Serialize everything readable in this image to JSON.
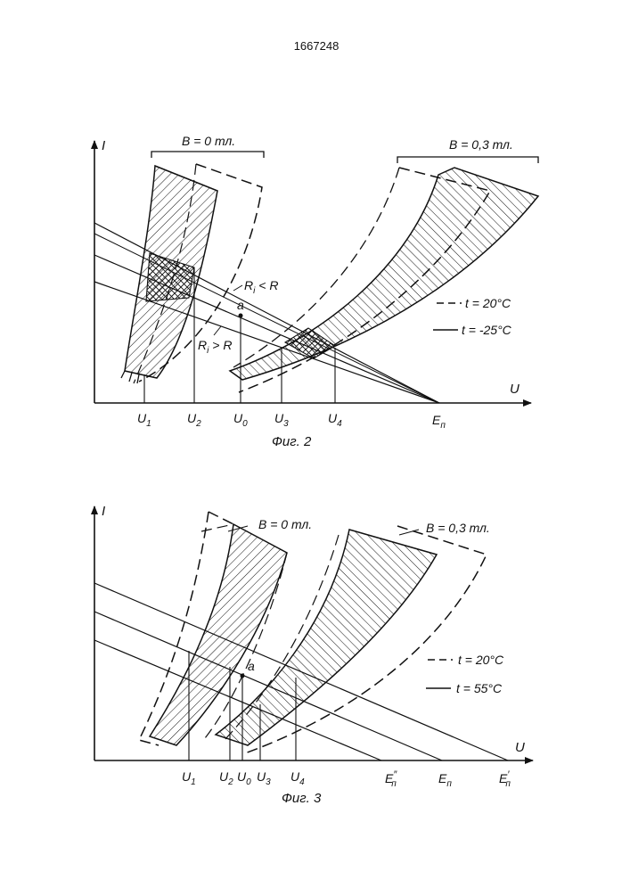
{
  "patent_number": "1667248",
  "fig2": {
    "caption": "Фиг. 2",
    "axis_y": "I",
    "axis_x": "U",
    "group_left": "B = 0 тл.",
    "group_right": "B = 0,3 тл.",
    "label_ri_less": "R",
    "label_ri_less_sub": "i",
    "label_ri_less_tail": " < R",
    "label_ri_more": "R",
    "label_ri_more_sub": "i",
    "label_ri_more_tail": " > R",
    "point_a": "a",
    "legend_dashed": "t = 20°C",
    "legend_solid": "t = -25°C",
    "ticks": [
      {
        "main": "U",
        "sub": "1"
      },
      {
        "main": "U",
        "sub": "2"
      },
      {
        "main": "U",
        "sub": "0"
      },
      {
        "main": "U",
        "sub": "3"
      },
      {
        "main": "U",
        "sub": "4"
      },
      {
        "main": "E",
        "sub": "п"
      }
    ]
  },
  "fig3": {
    "caption": "Фиг. 3",
    "axis_y": "I",
    "axis_x": "U",
    "group_left": "B = 0 тл.",
    "group_right": "B = 0,3 тл.",
    "point_a": "a",
    "legend_dashed": "t = 20°C",
    "legend_solid": "t = 55°C",
    "ticks": [
      {
        "main": "U",
        "sub": "1",
        "sup": ""
      },
      {
        "main": "U",
        "sub": "2",
        "sup": ""
      },
      {
        "main": "U",
        "sub": "0",
        "sup": ""
      },
      {
        "main": "U",
        "sub": "3",
        "sup": ""
      },
      {
        "main": "U",
        "sub": "4",
        "sup": ""
      },
      {
        "main": "E",
        "sub": "п",
        "sup": "″"
      },
      {
        "main": "E",
        "sub": "п",
        "sup": ""
      },
      {
        "main": "E",
        "sub": "п",
        "sup": "′"
      }
    ]
  }
}
